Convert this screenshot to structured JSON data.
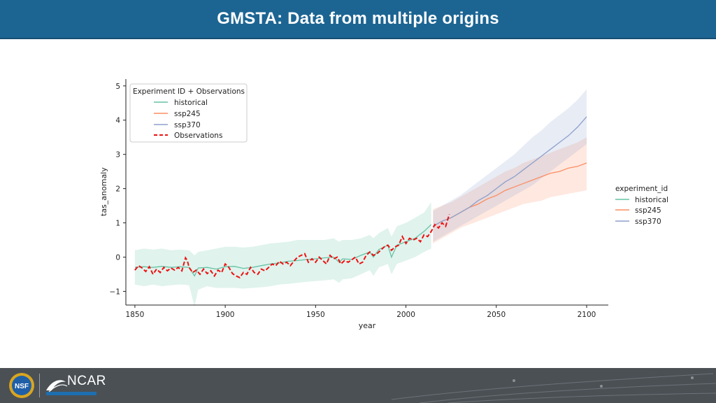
{
  "header": {
    "title": "GMSTA: Data from multiple origins"
  },
  "colors": {
    "header_bg": "#1c6593",
    "historical": "#66c2a5",
    "ssp245": "#fc8d62",
    "ssp370": "#8da0cb",
    "observations": "#ee1111",
    "footer_bg": "#4b5055"
  },
  "footer": {
    "logo_left": "NSF",
    "logo_right": "NCAR"
  },
  "chart_data": {
    "type": "line",
    "xlabel": "year",
    "ylabel": "tas_anomaly",
    "xlim": [
      1845,
      2112
    ],
    "ylim": [
      -1.4,
      5.2
    ],
    "xticks": [
      1850,
      1900,
      1950,
      2000,
      2050,
      2100
    ],
    "yticks": [
      -1,
      0,
      1,
      2,
      3,
      4,
      5
    ],
    "ytick_labels": [
      "−1",
      "0",
      "1",
      "2",
      "3",
      "4",
      "5"
    ],
    "legend_inner": {
      "title": "Experiment ID + Observations",
      "position": "top-left",
      "entries": [
        "historical",
        "ssp245",
        "ssp370",
        "Observations"
      ]
    },
    "legend_outer": {
      "title": "experiment_id",
      "position": "right",
      "entries": [
        "historical",
        "ssp245",
        "ssp370"
      ]
    },
    "series": [
      {
        "name": "historical",
        "style": "solid",
        "x": [
          1850,
          1855,
          1860,
          1865,
          1870,
          1875,
          1880,
          1883,
          1885,
          1890,
          1895,
          1900,
          1905,
          1910,
          1915,
          1920,
          1925,
          1930,
          1935,
          1940,
          1945,
          1950,
          1955,
          1960,
          1963,
          1965,
          1970,
          1975,
          1980,
          1982,
          1985,
          1990,
          1992,
          1995,
          2000,
          2005,
          2010,
          2014
        ],
        "values": [
          -0.3,
          -0.28,
          -0.3,
          -0.27,
          -0.3,
          -0.28,
          -0.3,
          -0.55,
          -0.32,
          -0.3,
          -0.35,
          -0.28,
          -0.27,
          -0.33,
          -0.3,
          -0.25,
          -0.2,
          -0.17,
          -0.12,
          -0.1,
          -0.07,
          -0.05,
          -0.02,
          0.0,
          -0.15,
          -0.05,
          -0.07,
          0.05,
          0.15,
          0.0,
          0.22,
          0.35,
          0.0,
          0.35,
          0.45,
          0.55,
          0.75,
          0.95
        ],
        "band_upper": [
          0.2,
          0.25,
          0.22,
          0.25,
          0.2,
          0.22,
          0.2,
          0.05,
          0.15,
          0.2,
          0.25,
          0.3,
          0.3,
          0.28,
          0.3,
          0.35,
          0.4,
          0.42,
          0.45,
          0.5,
          0.5,
          0.5,
          0.5,
          0.55,
          0.45,
          0.5,
          0.5,
          0.55,
          0.65,
          0.55,
          0.7,
          0.85,
          0.6,
          0.9,
          1.0,
          1.15,
          1.3,
          1.6
        ],
        "band_lower": [
          -0.8,
          -0.85,
          -0.8,
          -0.85,
          -0.82,
          -0.8,
          -0.82,
          -1.45,
          -0.95,
          -0.85,
          -0.9,
          -0.9,
          -0.9,
          -0.92,
          -0.9,
          -0.88,
          -0.85,
          -0.8,
          -0.78,
          -0.75,
          -0.72,
          -0.7,
          -0.68,
          -0.65,
          -0.75,
          -0.65,
          -0.62,
          -0.5,
          -0.38,
          -0.55,
          -0.3,
          -0.2,
          -0.5,
          -0.2,
          -0.1,
          0.0,
          0.15,
          0.25
        ]
      },
      {
        "name": "ssp245",
        "style": "solid",
        "x": [
          2015,
          2020,
          2025,
          2030,
          2035,
          2040,
          2045,
          2050,
          2055,
          2060,
          2065,
          2070,
          2075,
          2080,
          2085,
          2090,
          2095,
          2100
        ],
        "values": [
          0.9,
          1.05,
          1.15,
          1.3,
          1.45,
          1.55,
          1.7,
          1.8,
          1.95,
          2.05,
          2.15,
          2.25,
          2.35,
          2.45,
          2.5,
          2.6,
          2.65,
          2.75
        ],
        "band_upper": [
          1.4,
          1.5,
          1.6,
          1.75,
          1.9,
          2.05,
          2.2,
          2.35,
          2.5,
          2.6,
          2.75,
          2.85,
          2.95,
          3.05,
          3.15,
          3.25,
          3.35,
          3.5
        ],
        "band_lower": [
          0.4,
          0.55,
          0.7,
          0.85,
          0.95,
          1.05,
          1.15,
          1.25,
          1.35,
          1.45,
          1.55,
          1.6,
          1.65,
          1.75,
          1.8,
          1.85,
          1.9,
          1.95
        ]
      },
      {
        "name": "ssp370",
        "style": "solid",
        "x": [
          2015,
          2020,
          2025,
          2030,
          2035,
          2040,
          2045,
          2050,
          2055,
          2060,
          2065,
          2070,
          2075,
          2080,
          2085,
          2090,
          2095,
          2100
        ],
        "values": [
          0.9,
          1.05,
          1.15,
          1.3,
          1.45,
          1.65,
          1.8,
          2.0,
          2.2,
          2.35,
          2.55,
          2.75,
          2.95,
          3.15,
          3.35,
          3.55,
          3.8,
          4.1
        ],
        "band_upper": [
          1.35,
          1.5,
          1.65,
          1.8,
          2.0,
          2.2,
          2.4,
          2.6,
          2.8,
          3.0,
          3.25,
          3.5,
          3.7,
          3.95,
          4.15,
          4.35,
          4.6,
          4.9
        ],
        "band_lower": [
          0.45,
          0.6,
          0.75,
          0.9,
          1.05,
          1.2,
          1.35,
          1.5,
          1.65,
          1.8,
          1.95,
          2.1,
          2.3,
          2.5,
          2.7,
          2.9,
          3.1,
          3.3
        ]
      },
      {
        "name": "Observations",
        "style": "dashed",
        "x": [
          1850,
          1852,
          1854,
          1856,
          1858,
          1860,
          1862,
          1864,
          1866,
          1868,
          1870,
          1872,
          1874,
          1876,
          1878,
          1879,
          1880,
          1882,
          1884,
          1886,
          1888,
          1890,
          1892,
          1894,
          1896,
          1898,
          1900,
          1902,
          1904,
          1906,
          1908,
          1910,
          1912,
          1914,
          1916,
          1918,
          1920,
          1922,
          1924,
          1926,
          1928,
          1930,
          1932,
          1934,
          1936,
          1938,
          1940,
          1942,
          1944,
          1946,
          1948,
          1950,
          1952,
          1954,
          1956,
          1958,
          1960,
          1962,
          1964,
          1966,
          1968,
          1970,
          1972,
          1974,
          1976,
          1978,
          1980,
          1982,
          1984,
          1986,
          1988,
          1990,
          1992,
          1994,
          1996,
          1998,
          2000,
          2002,
          2004,
          2006,
          2008,
          2010,
          2012,
          2014,
          2016,
          2018,
          2020,
          2022,
          2024
        ],
        "values": [
          -0.38,
          -0.25,
          -0.32,
          -0.42,
          -0.28,
          -0.5,
          -0.35,
          -0.45,
          -0.3,
          -0.4,
          -0.32,
          -0.38,
          -0.3,
          -0.4,
          -0.02,
          -0.1,
          -0.3,
          -0.45,
          -0.38,
          -0.5,
          -0.35,
          -0.48,
          -0.4,
          -0.55,
          -0.38,
          -0.45,
          -0.2,
          -0.3,
          -0.48,
          -0.55,
          -0.6,
          -0.45,
          -0.5,
          -0.3,
          -0.45,
          -0.5,
          -0.35,
          -0.4,
          -0.3,
          -0.2,
          -0.25,
          -0.12,
          -0.2,
          -0.15,
          -0.25,
          -0.12,
          0.0,
          0.05,
          0.1,
          -0.15,
          -0.05,
          -0.15,
          0.0,
          -0.1,
          -0.2,
          0.05,
          -0.05,
          0.0,
          -0.2,
          -0.1,
          -0.15,
          -0.08,
          0.0,
          -0.2,
          -0.15,
          0.05,
          0.15,
          0.05,
          0.1,
          0.2,
          0.3,
          0.35,
          0.2,
          0.3,
          0.35,
          0.6,
          0.4,
          0.55,
          0.5,
          0.55,
          0.45,
          0.65,
          0.6,
          0.75,
          0.95,
          0.85,
          1.0,
          0.9,
          1.25
        ]
      }
    ]
  }
}
